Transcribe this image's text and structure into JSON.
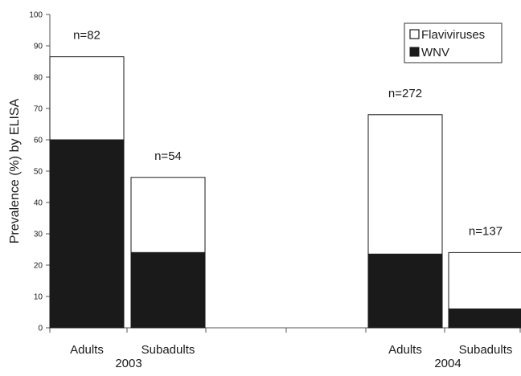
{
  "chart_data": {
    "type": "bar",
    "stacked": true,
    "ylabel": "Prevalence (%) by ELISA",
    "ylim": [
      0,
      100
    ],
    "yticks": [
      0,
      10,
      20,
      30,
      40,
      50,
      60,
      70,
      80,
      90,
      100
    ],
    "grid": false,
    "legend_position": "top-right",
    "groups": [
      {
        "year": "2003",
        "categories": [
          "Adults",
          "Subadults"
        ]
      },
      {
        "year": "2004",
        "categories": [
          "Adults",
          "Subadults"
        ]
      }
    ],
    "bars": [
      {
        "category": "Adults",
        "year": "2003",
        "n_label": "n=82",
        "wnv": 60,
        "total": 86.5
      },
      {
        "category": "Subadults",
        "year": "2003",
        "n_label": "n=54",
        "wnv": 24,
        "total": 48
      },
      {
        "category": "Adults",
        "year": "2004",
        "n_label": "n=272",
        "wnv": 23.5,
        "total": 68
      },
      {
        "category": "Subadults",
        "year": "2004",
        "n_label": "n=137",
        "wnv": 6,
        "total": 24
      }
    ],
    "series": [
      {
        "name": "Flaviviruses",
        "color": "#ffffff"
      },
      {
        "name": "WNV",
        "color": "#1a1a1a"
      }
    ]
  }
}
